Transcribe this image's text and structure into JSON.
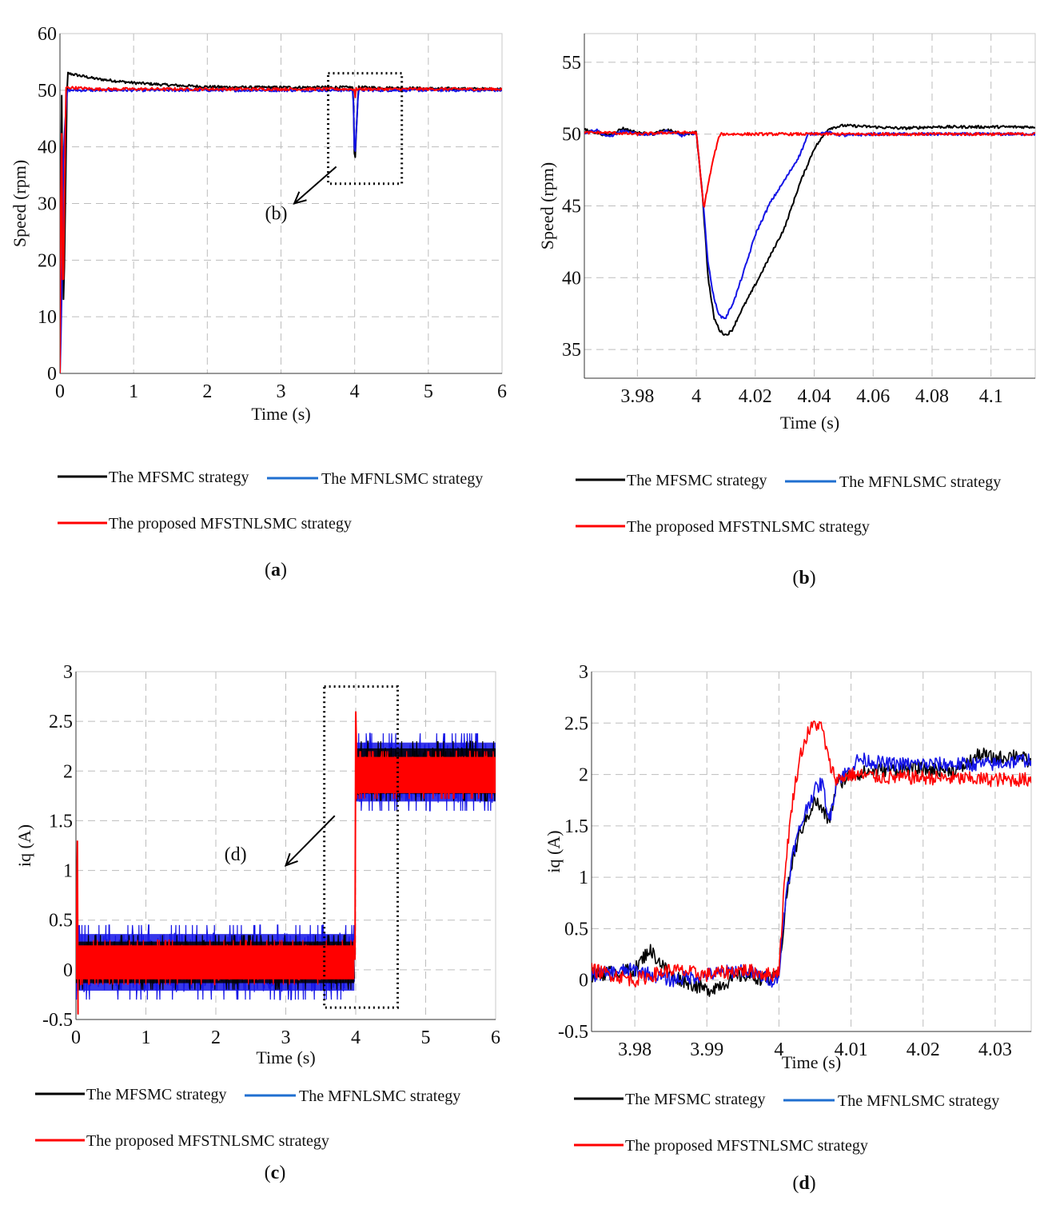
{
  "colors": {
    "mfsmc": "#000000",
    "mfnlsmc": "#1414e6",
    "proposed": "#ff0000",
    "legend_blue": "#1f6fd0",
    "grid": "#bdbdbd"
  },
  "legend": {
    "mfsmc": "The MFSMC strategy",
    "mfnlsmc": "The MFNLSMC strategy",
    "proposed": "The proposed MFSTNLSMC strategy"
  },
  "chart_data": [
    {
      "id": "a",
      "type": "line",
      "caption_letter": "a",
      "xlabel": "Time (s)",
      "ylabel": "Speed (rpm)",
      "xlim": [
        0,
        6
      ],
      "ylim": [
        0,
        60
      ],
      "xticks": [
        0,
        1,
        2,
        3,
        4,
        5,
        6
      ],
      "xtick_labels": [
        "0",
        "1",
        "2",
        "3",
        "4",
        "5",
        "6"
      ],
      "yticks": [
        0,
        10,
        20,
        30,
        40,
        50,
        60
      ],
      "ytick_labels": [
        "0",
        "10",
        "20",
        "30",
        "40",
        "50",
        "60"
      ],
      "grid": true,
      "zoom_box": {
        "x": [
          3.64,
          4.64
        ],
        "y": [
          33.5,
          53
        ]
      },
      "callout": {
        "label": "(b)",
        "arrow_from": [
          3.75,
          36.5
        ],
        "arrow_to": [
          3.18,
          30
        ],
        "label_at": [
          3.0,
          28
        ]
      },
      "series": [
        {
          "name": "The MFSMC strategy",
          "color_key": "mfsmc",
          "x": [
            0,
            0.02,
            0.05,
            0.1,
            0.5,
            1.0,
            1.5,
            2.0,
            2.5,
            3.0,
            3.5,
            3.98,
            4.0,
            4.02,
            4.05,
            4.1,
            5.0,
            6.0
          ],
          "y": [
            0,
            55,
            10,
            53,
            52,
            51.3,
            50.9,
            50.6,
            50.5,
            50.5,
            50.5,
            50.5,
            36,
            42,
            50.5,
            50.5,
            50.3,
            50.2
          ]
        },
        {
          "name": "The MFNLSMC strategy",
          "color_key": "mfnlsmc",
          "x": [
            0,
            0.02,
            0.05,
            0.1,
            0.5,
            1.0,
            2.0,
            3.0,
            3.98,
            4.0,
            4.01,
            4.05,
            4.1,
            5.0,
            6.0
          ],
          "y": [
            0,
            10,
            40,
            50,
            50,
            50,
            50,
            50,
            50,
            37,
            40,
            50,
            50,
            50,
            50
          ]
        },
        {
          "name": "The proposed MFSTNLSMC strategy",
          "color_key": "proposed",
          "x": [
            0,
            0.02,
            0.04,
            0.08,
            0.5,
            1.0,
            2.0,
            3.0,
            3.98,
            4.0,
            4.003,
            4.01,
            4.05,
            5.0,
            6.0
          ],
          "y": [
            0,
            51,
            8,
            50.5,
            50.2,
            50.2,
            50.2,
            50.2,
            50.2,
            50.2,
            44.8,
            50.2,
            50.2,
            50.2,
            50.2
          ]
        }
      ]
    },
    {
      "id": "b",
      "type": "line",
      "caption_letter": "b",
      "xlabel": "Time (s)",
      "ylabel": "Speed (rpm)",
      "xlim": [
        3.962,
        4.115
      ],
      "ylim": [
        33,
        57
      ],
      "xticks": [
        3.98,
        4.0,
        4.02,
        4.04,
        4.06,
        4.08,
        4.1
      ],
      "xtick_labels": [
        "3.98",
        "4",
        "4.02",
        "4.04",
        "4.06",
        "4.08",
        "4.1"
      ],
      "yticks": [
        35,
        40,
        45,
        50,
        55
      ],
      "ytick_labels": [
        "35",
        "40",
        "45",
        "50",
        "55"
      ],
      "grid": true,
      "series": [
        {
          "name": "The MFSMC strategy",
          "color_key": "mfsmc",
          "x": [
            3.962,
            3.966,
            3.97,
            3.975,
            3.98,
            3.985,
            3.99,
            3.995,
            4.0,
            4.002,
            4.004,
            4.006,
            4.008,
            4.01,
            4.012,
            4.015,
            4.02,
            4.025,
            4.03,
            4.035,
            4.04,
            4.045,
            4.05,
            4.06,
            4.07,
            4.08,
            4.09,
            4.1,
            4.115
          ],
          "y": [
            50.3,
            50.1,
            49.9,
            50.4,
            50.1,
            50.0,
            50.3,
            50.0,
            50.1,
            46.0,
            40.0,
            37.2,
            36.3,
            36.0,
            36.3,
            37.6,
            39.5,
            41.5,
            43.5,
            46.5,
            49.0,
            50.4,
            50.6,
            50.5,
            50.4,
            50.5,
            50.5,
            50.5,
            50.5
          ]
        },
        {
          "name": "The MFNLSMC strategy",
          "color_key": "mfnlsmc",
          "x": [
            3.962,
            3.966,
            3.97,
            3.975,
            3.98,
            3.985,
            3.99,
            3.995,
            4.0,
            4.002,
            4.004,
            4.006,
            4.008,
            4.01,
            4.013,
            4.017,
            4.02,
            4.025,
            4.03,
            4.035,
            4.038,
            4.045,
            4.05,
            4.06,
            4.08,
            4.1,
            4.115
          ],
          "y": [
            50.1,
            50.3,
            49.8,
            50.2,
            50.0,
            50.0,
            50.2,
            49.9,
            50.1,
            46.0,
            41.0,
            38.5,
            37.3,
            37.2,
            38.5,
            41.0,
            43.0,
            45.2,
            46.8,
            48.5,
            50.0,
            50.1,
            49.9,
            50.0,
            50.0,
            50.0,
            50.0
          ]
        },
        {
          "name": "The proposed MFSTNLSMC strategy",
          "color_key": "proposed",
          "x": [
            3.962,
            3.97,
            3.98,
            3.99,
            4.0,
            4.001,
            4.0025,
            4.004,
            4.006,
            4.008,
            4.02,
            4.04,
            4.06,
            4.08,
            4.1,
            4.115
          ],
          "y": [
            50.1,
            50.1,
            50.0,
            50.1,
            50.1,
            48.0,
            44.8,
            46.5,
            48.5,
            50.0,
            50.0,
            50.0,
            50.0,
            50.0,
            50.0,
            50.0
          ]
        }
      ]
    },
    {
      "id": "c",
      "type": "line",
      "caption_letter": "c",
      "xlabel": "Time (s)",
      "ylabel": "iq (A)",
      "xlim": [
        0,
        6
      ],
      "ylim": [
        -0.5,
        3
      ],
      "xticks": [
        0,
        1,
        2,
        3,
        4,
        5,
        6
      ],
      "xtick_labels": [
        "0",
        "1",
        "2",
        "3",
        "4",
        "5",
        "6"
      ],
      "yticks": [
        -0.5,
        0,
        0.5,
        1,
        1.5,
        2,
        2.5,
        3
      ],
      "ytick_labels": [
        "-0.5",
        "0",
        "0.5",
        "1",
        "1.5",
        "2",
        "2.5",
        "3"
      ],
      "grid": true,
      "zoom_box": {
        "x": [
          3.55,
          4.6
        ],
        "y": [
          -0.38,
          2.85
        ]
      },
      "callout": {
        "label": "(d)",
        "arrow_from": [
          3.7,
          1.55
        ],
        "arrow_to": [
          3.0,
          1.05
        ],
        "label_at": [
          2.35,
          1.15
        ]
      },
      "bands": [
        {
          "color_key": "mfnlsmc",
          "segments": [
            {
              "x": [
                0,
                3.98
              ],
              "low": -0.3,
              "high": 0.45
            },
            {
              "x": [
                4.0,
                6.0
              ],
              "low": 1.6,
              "high": 2.38
            }
          ]
        },
        {
          "color_key": "mfsmc",
          "segments": [
            {
              "x": [
                0,
                3.98
              ],
              "low": -0.2,
              "high": 0.35
            },
            {
              "x": [
                4.0,
                6.0
              ],
              "low": 1.7,
              "high": 2.3
            }
          ]
        },
        {
          "color_key": "proposed",
          "segments": [
            {
              "x": [
                0,
                3.98
              ],
              "low": -0.15,
              "high": 0.3
            },
            {
              "x": [
                4.0,
                6.0
              ],
              "low": 1.72,
              "high": 2.2
            }
          ]
        }
      ],
      "spikes": [
        {
          "color_key": "proposed",
          "x": [
            0.0,
            0.02,
            0.03
          ],
          "y": [
            0.05,
            1.3,
            -0.45
          ]
        },
        {
          "color_key": "proposed",
          "x": [
            3.99,
            4.0,
            4.02
          ],
          "y": [
            0.1,
            2.6,
            1.9
          ]
        }
      ]
    },
    {
      "id": "d",
      "type": "line",
      "caption_letter": "d",
      "xlabel": "Time (s)",
      "ylabel": "iq (A)",
      "xlim": [
        3.974,
        4.035
      ],
      "ylim": [
        -0.5,
        3
      ],
      "xticks": [
        3.98,
        3.99,
        4.0,
        4.01,
        4.02,
        4.03
      ],
      "xtick_labels": [
        "3.98",
        "3.99",
        "4",
        "4.01",
        "4.02",
        "4.03"
      ],
      "yticks": [
        -0.5,
        0,
        0.5,
        1,
        1.5,
        2,
        2.5,
        3
      ],
      "ytick_labels": [
        "-0.5",
        "0",
        "0.5",
        "1",
        "1.5",
        "2",
        "2.5",
        "3"
      ],
      "grid": true,
      "series": [
        {
          "name": "The MFSMC strategy",
          "color_key": "mfsmc",
          "x": [
            3.974,
            3.98,
            3.982,
            3.985,
            3.99,
            3.995,
            3.999,
            4.0,
            4.001,
            4.002,
            4.003,
            4.004,
            4.005,
            4.006,
            4.007,
            4.008,
            4.01,
            4.015,
            4.02,
            4.025,
            4.028,
            4.03,
            4.033,
            4.035
          ],
          "y": [
            0.05,
            0.1,
            0.3,
            0.05,
            -0.1,
            0.05,
            0.0,
            0.05,
            0.8,
            1.2,
            1.45,
            1.6,
            1.75,
            1.65,
            1.55,
            1.9,
            2.0,
            2.05,
            2.05,
            2.05,
            2.2,
            2.15,
            2.2,
            2.1
          ]
        },
        {
          "name": "The MFNLSMC strategy",
          "color_key": "mfnlsmc",
          "x": [
            3.974,
            3.98,
            3.985,
            3.99,
            3.995,
            3.999,
            4.0,
            4.001,
            4.002,
            4.003,
            4.004,
            4.005,
            4.006,
            4.007,
            4.008,
            4.01,
            4.011,
            4.015,
            4.02,
            4.025,
            4.03,
            4.035
          ],
          "y": [
            0.05,
            0.1,
            0.0,
            0.05,
            0.1,
            0.0,
            0.05,
            0.85,
            1.25,
            1.5,
            1.7,
            1.85,
            1.92,
            1.55,
            1.95,
            2.05,
            2.15,
            2.1,
            2.1,
            2.1,
            2.1,
            2.15
          ]
        },
        {
          "name": "The proposed MFSTNLSMC strategy",
          "color_key": "proposed",
          "x": [
            3.974,
            3.98,
            3.985,
            3.99,
            3.995,
            3.999,
            4.0,
            4.001,
            4.002,
            4.003,
            4.004,
            4.005,
            4.006,
            4.007,
            4.008,
            4.01,
            4.015,
            4.02,
            4.025,
            4.03,
            4.035
          ],
          "y": [
            0.1,
            0.0,
            0.1,
            0.05,
            0.1,
            0.05,
            0.1,
            1.2,
            1.8,
            2.2,
            2.4,
            2.5,
            2.45,
            2.1,
            1.95,
            2.0,
            1.97,
            1.97,
            1.96,
            1.95,
            1.95
          ]
        }
      ]
    }
  ]
}
